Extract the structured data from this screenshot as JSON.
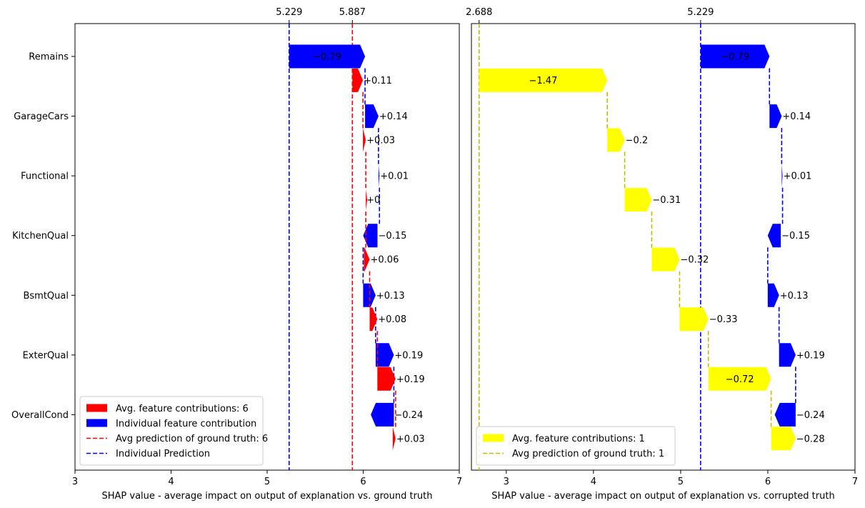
{
  "chart_data": [
    {
      "type": "waterfall",
      "xlabel": "SHAP value - average impact on output of explanation vs. ground truth",
      "xlim": [
        3,
        7
      ],
      "xticks": [
        3,
        4,
        5,
        6,
        7
      ],
      "top_ticks": [
        {
          "value": 5.229,
          "label": "5.229"
        },
        {
          "value": 5.887,
          "label": "5.887"
        }
      ],
      "features": [
        "Remains",
        "GarageCars",
        "Functional",
        "KitchenQual",
        "BsmtQual",
        "ExterQual",
        "OverallCond"
      ],
      "series": [
        {
          "name": "Individual feature contribution",
          "color": "#0000ff",
          "row_offset": 0,
          "bars": [
            {
              "start": 5.229,
              "end": 6.019,
              "label": "−0.79"
            },
            {
              "start": 6.019,
              "end": 6.159,
              "label": "+0.14"
            },
            {
              "start": 6.159,
              "end": 6.169,
              "label": "+0.01"
            },
            {
              "start": 6.149,
              "end": 5.999,
              "label": "−0.15"
            },
            {
              "start": 5.999,
              "end": 6.129,
              "label": "+0.13"
            },
            {
              "start": 6.129,
              "end": 6.319,
              "label": "+0.19"
            },
            {
              "start": 6.319,
              "end": 6.079,
              "label": "−0.24"
            }
          ]
        },
        {
          "name": "Avg. feature contributions: 6",
          "color": "#ff0000",
          "row_offset": 0.4,
          "bars": [
            {
              "start": 5.887,
              "end": 5.997,
              "label": "+0.11"
            },
            {
              "start": 5.997,
              "end": 6.027,
              "label": "+0.03"
            },
            {
              "start": 6.027,
              "end": 6.027,
              "label": "+0"
            },
            {
              "start": 6.007,
              "end": 6.067,
              "label": "+0.06"
            },
            {
              "start": 6.067,
              "end": 6.147,
              "label": "+0.08"
            },
            {
              "start": 6.147,
              "end": 6.337,
              "label": "+0.19"
            },
            {
              "start": 6.307,
              "end": 6.337,
              "label": "+0.03"
            }
          ]
        }
      ],
      "vlines": [
        {
          "name": "Avg prediction of ground truth: 6",
          "value": 5.887,
          "color": "#ff0000"
        },
        {
          "name": "Individual Prediction",
          "value": 5.229,
          "color": "#0000ff"
        }
      ],
      "legend": {
        "placement": "lower-left",
        "entries": [
          {
            "kind": "patch",
            "color": "#ff0000",
            "label": "Avg. feature contributions: 6"
          },
          {
            "kind": "patch",
            "color": "#0000ff",
            "label": "Individual feature contribution"
          },
          {
            "kind": "line",
            "color": "#ff0000",
            "label": "Avg prediction of ground truth: 6"
          },
          {
            "kind": "line",
            "color": "#0000ff",
            "label": "Individual Prediction"
          }
        ]
      }
    },
    {
      "type": "waterfall",
      "xlabel": "SHAP value - average impact on output of explanation vs. corrupted truth",
      "xlim": [
        2.6,
        7
      ],
      "xticks": [
        3,
        4,
        5,
        6,
        7
      ],
      "top_ticks": [
        {
          "value": 2.688,
          "label": "2.688"
        },
        {
          "value": 5.229,
          "label": "5.229"
        }
      ],
      "features": [
        "Remains",
        "GarageCars",
        "Functional",
        "KitchenQual",
        "BsmtQual",
        "ExterQual",
        "OverallCond"
      ],
      "series": [
        {
          "name": "Individual feature contribution",
          "color": "#0000ff",
          "row_offset": 0,
          "bars": [
            {
              "start": 5.229,
              "end": 6.019,
              "label": "−0.79"
            },
            {
              "start": 6.019,
              "end": 6.159,
              "label": "+0.14"
            },
            {
              "start": 6.159,
              "end": 6.169,
              "label": "+0.01"
            },
            {
              "start": 6.149,
              "end": 5.999,
              "label": "−0.15"
            },
            {
              "start": 5.999,
              "end": 6.129,
              "label": "+0.13"
            },
            {
              "start": 6.129,
              "end": 6.319,
              "label": "+0.19"
            },
            {
              "start": 6.319,
              "end": 6.079,
              "label": "−0.24"
            }
          ]
        },
        {
          "name": "Avg. feature contributions: 1",
          "color": "#ffff00",
          "row_offset": 0.4,
          "bars": [
            {
              "start": 2.688,
              "end": 4.158,
              "label": "−1.47"
            },
            {
              "start": 4.158,
              "end": 4.358,
              "label": "−0.2"
            },
            {
              "start": 4.358,
              "end": 4.668,
              "label": "−0.31"
            },
            {
              "start": 4.668,
              "end": 4.988,
              "label": "−0.32"
            },
            {
              "start": 4.988,
              "end": 5.318,
              "label": "−0.33"
            },
            {
              "start": 5.318,
              "end": 6.038,
              "label": "−0.72"
            },
            {
              "start": 6.038,
              "end": 6.318,
              "label": "−0.28"
            }
          ]
        }
      ],
      "vlines": [
        {
          "name": "Avg prediction of ground truth: 1",
          "value": 2.688,
          "color": "#bfbf00"
        },
        {
          "name": "Individual Prediction",
          "value": 5.229,
          "color": "#0000ff"
        }
      ],
      "legend": {
        "placement": "lower-left",
        "entries": [
          {
            "kind": "patch",
            "color": "#ffff00",
            "label": "Avg. feature contributions: 1"
          },
          {
            "kind": "line",
            "color": "#bfbf00",
            "label": "Avg prediction of ground truth: 1"
          }
        ]
      }
    }
  ]
}
